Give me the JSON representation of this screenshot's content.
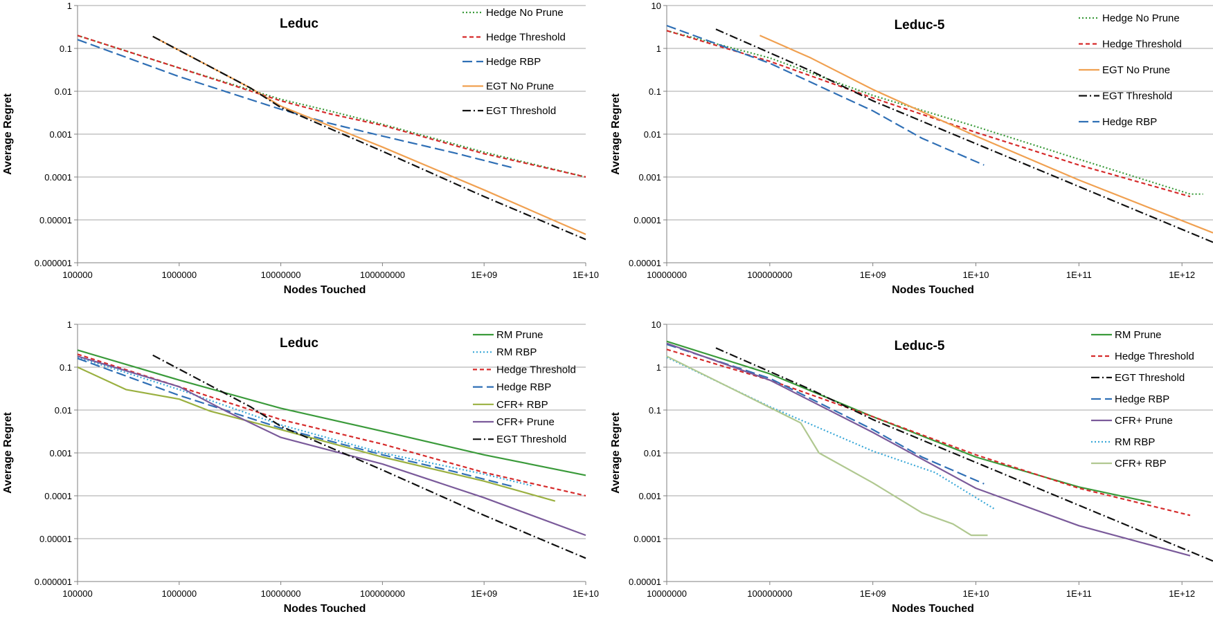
{
  "chart_data": [
    {
      "type": "line",
      "title": "Leduc",
      "xlabel": "Nodes Touched",
      "ylabel": "Average Regret",
      "xscale": "log",
      "yscale": "log",
      "xlim": [
        100000,
        10000000000
      ],
      "ylim": [
        1e-06,
        1
      ],
      "xticks": [
        100000,
        1000000,
        10000000,
        100000000,
        1000000000,
        10000000000
      ],
      "xtick_labels": [
        "100000",
        "1000000",
        "10000000",
        "100000000",
        "1E+09",
        "1E+10"
      ],
      "yticks": [
        1e-06,
        1e-05,
        0.0001,
        0.001,
        0.01,
        0.1,
        1
      ],
      "ytick_labels": [
        "0.000001",
        "0.00001",
        "0.0001",
        "0.001",
        "0.01",
        "0.1",
        "1"
      ],
      "legend_position": "top-right",
      "grid": true,
      "series": [
        {
          "name": "Hedge No Prune",
          "color": "#3a9a3a",
          "dash": "dot",
          "points": [
            [
              100000,
              0.2
            ],
            [
              1000000,
              0.035
            ],
            [
              10000000,
              0.0065
            ],
            [
              30000000,
              0.0035
            ],
            [
              100000000,
              0.0017
            ],
            [
              1000000000,
              0.00038
            ],
            [
              10000000000,
              0.0001
            ]
          ]
        },
        {
          "name": "Hedge Threshold",
          "color": "#d62b2b",
          "dash": "dash",
          "points": [
            [
              100000,
              0.2
            ],
            [
              1000000,
              0.035
            ],
            [
              10000000,
              0.006
            ],
            [
              30000000,
              0.003
            ],
            [
              100000000,
              0.0016
            ],
            [
              1000000000,
              0.00035
            ],
            [
              10000000000,
              0.0001
            ]
          ]
        },
        {
          "name": "Hedge RBP",
          "color": "#2f6fb5",
          "dash": "longdash",
          "points": [
            [
              100000,
              0.16
            ],
            [
              1000000,
              0.022
            ],
            [
              10000000,
              0.0038
            ],
            [
              30000000,
              0.0018
            ],
            [
              100000000,
              0.0009
            ],
            [
              500000000,
              0.00037
            ],
            [
              2000000000,
              0.00016
            ]
          ]
        },
        {
          "name": "EGT No Prune",
          "color": "#f0a050",
          "dash": "solid",
          "points": [
            [
              550000,
              0.19
            ],
            [
              5000000,
              0.012
            ],
            [
              10000000,
              0.0045
            ],
            [
              100000000,
              0.0005
            ],
            [
              1000000000,
              5e-05
            ],
            [
              10000000000,
              4.6e-06
            ]
          ]
        },
        {
          "name": "EGT Threshold",
          "color": "#111111",
          "dash": "dashdot",
          "points": [
            [
              550000,
              0.19
            ],
            [
              5000000,
              0.012
            ],
            [
              10000000,
              0.0042
            ],
            [
              100000000,
              0.0004
            ],
            [
              1000000000,
              3.5e-05
            ],
            [
              10000000000,
              3.5e-06
            ]
          ]
        }
      ]
    },
    {
      "type": "line",
      "title": "Leduc-5",
      "xlabel": "Nodes Touched",
      "ylabel": "Average Regret",
      "xscale": "log",
      "yscale": "log",
      "xlim": [
        10000000,
        2000000000000
      ],
      "ylim": [
        1e-05,
        10
      ],
      "xticks": [
        10000000,
        100000000,
        1000000000,
        10000000000,
        100000000000,
        1000000000000
      ],
      "xtick_labels": [
        "10000000",
        "100000000",
        "1E+09",
        "1E+10",
        "1E+11",
        "1E+12"
      ],
      "yticks": [
        1e-05,
        0.0001,
        0.001,
        0.01,
        0.1,
        1,
        10
      ],
      "ytick_labels": [
        "0.00001",
        "0.0001",
        "0.001",
        "0.01",
        "0.1",
        "1",
        "10"
      ],
      "legend_position": "top-right",
      "grid": true,
      "series": [
        {
          "name": "Hedge No Prune",
          "color": "#3a9a3a",
          "dash": "dot",
          "points": [
            [
              10000000,
              2.6
            ],
            [
              100000000,
              0.6
            ],
            [
              1000000000,
              0.08
            ],
            [
              10000000000,
              0.015
            ],
            [
              100000000000,
              0.0026
            ],
            [
              1200000000000,
              0.0004
            ],
            [
              1600000000000,
              0.0004
            ]
          ]
        },
        {
          "name": "Hedge Threshold",
          "color": "#d62b2b",
          "dash": "dash",
          "points": [
            [
              10000000,
              2.6
            ],
            [
              100000000,
              0.5
            ],
            [
              1000000000,
              0.07
            ],
            [
              10000000000,
              0.011
            ],
            [
              100000000000,
              0.0019
            ],
            [
              1200000000000,
              0.00035
            ]
          ]
        },
        {
          "name": "EGT No Prune",
          "color": "#f0a050",
          "dash": "solid",
          "points": [
            [
              80000000,
              2.0
            ],
            [
              250000000,
              0.6
            ],
            [
              1000000000,
              0.11
            ],
            [
              10000000000,
              0.009
            ],
            [
              100000000000,
              0.00085
            ],
            [
              2000000000000,
              5e-05
            ]
          ]
        },
        {
          "name": "EGT Threshold",
          "color": "#111111",
          "dash": "dashdot",
          "points": [
            [
              30000000,
              2.8
            ],
            [
              250000000,
              0.3
            ],
            [
              1000000000,
              0.06
            ],
            [
              10000000000,
              0.006
            ],
            [
              100000000000,
              0.0006
            ],
            [
              2000000000000,
              3e-05
            ]
          ]
        },
        {
          "name": "Hedge RBP",
          "color": "#2f6fb5",
          "dash": "longdash",
          "points": [
            [
              10000000,
              3.4
            ],
            [
              100000000,
              0.45
            ],
            [
              1000000000,
              0.035
            ],
            [
              3000000000,
              0.008
            ],
            [
              12000000000,
              0.0019
            ]
          ]
        }
      ]
    },
    {
      "type": "line",
      "title": "Leduc",
      "xlabel": "Nodes Touched",
      "ylabel": "Average Regret",
      "xscale": "log",
      "yscale": "log",
      "xlim": [
        100000,
        10000000000
      ],
      "ylim": [
        1e-06,
        1
      ],
      "xticks": [
        100000,
        1000000,
        10000000,
        100000000,
        1000000000,
        10000000000
      ],
      "xtick_labels": [
        "100000",
        "1000000",
        "10000000",
        "100000000",
        "1E+09",
        "1E+10"
      ],
      "yticks": [
        1e-06,
        1e-05,
        0.0001,
        0.001,
        0.01,
        0.1,
        1
      ],
      "ytick_labels": [
        "0.000001",
        "0.00001",
        "0.0001",
        "0.001",
        "0.01",
        "0.1",
        "1"
      ],
      "legend_position": "top-right",
      "grid": true,
      "series": [
        {
          "name": "RM Prune",
          "color": "#3a9a3a",
          "dash": "solid",
          "points": [
            [
              100000,
              0.25
            ],
            [
              1000000,
              0.05
            ],
            [
              10000000,
              0.011
            ],
            [
              100000000,
              0.0032
            ],
            [
              1000000000,
              0.0009
            ],
            [
              10000000000,
              0.0003
            ]
          ]
        },
        {
          "name": "RM RBP",
          "color": "#3aa8d8",
          "dash": "dot",
          "points": [
            [
              100000,
              0.17
            ],
            [
              1000000,
              0.03
            ],
            [
              10000000,
              0.0045
            ],
            [
              100000000,
              0.001
            ],
            [
              1000000000,
              0.00032
            ],
            [
              3000000000,
              0.00017
            ]
          ]
        },
        {
          "name": "Hedge Threshold",
          "color": "#d62b2b",
          "dash": "dash",
          "points": [
            [
              100000,
              0.2
            ],
            [
              1000000,
              0.035
            ],
            [
              10000000,
              0.006
            ],
            [
              100000000,
              0.0016
            ],
            [
              1000000000,
              0.00035
            ],
            [
              10000000000,
              0.0001
            ]
          ]
        },
        {
          "name": "Hedge RBP",
          "color": "#2f6fb5",
          "dash": "longdash",
          "points": [
            [
              100000,
              0.16
            ],
            [
              1000000,
              0.022
            ],
            [
              10000000,
              0.0038
            ],
            [
              100000000,
              0.0009
            ],
            [
              500000000,
              0.00037
            ],
            [
              2000000000,
              0.00016
            ]
          ]
        },
        {
          "name": "CFR+ RBP",
          "color": "#9ab040",
          "dash": "solid",
          "points": [
            [
              100000,
              0.1
            ],
            [
              300000,
              0.03
            ],
            [
              1000000,
              0.018
            ],
            [
              2000000,
              0.0095
            ],
            [
              10000000,
              0.0035
            ],
            [
              100000000,
              0.0008
            ],
            [
              1000000000,
              0.00022
            ],
            [
              5000000000,
              7.5e-05
            ]
          ]
        },
        {
          "name": "CFR+ Prune",
          "color": "#7a5a9a",
          "dash": "solid",
          "points": [
            [
              100000,
              0.18
            ],
            [
              1000000,
              0.035
            ],
            [
              3000000,
              0.009
            ],
            [
              10000000,
              0.0023
            ],
            [
              100000000,
              0.00055
            ],
            [
              1000000000,
              9e-05
            ],
            [
              10000000000,
              1.2e-05
            ]
          ]
        },
        {
          "name": "EGT Threshold",
          "color": "#111111",
          "dash": "dashdot",
          "points": [
            [
              550000,
              0.19
            ],
            [
              5000000,
              0.012
            ],
            [
              10000000,
              0.0042
            ],
            [
              100000000,
              0.0004
            ],
            [
              1000000000,
              3.5e-05
            ],
            [
              10000000000,
              3.5e-06
            ]
          ]
        }
      ]
    },
    {
      "type": "line",
      "title": "Leduc-5",
      "xlabel": "Nodes Touched",
      "ylabel": "Average Regret",
      "xscale": "log",
      "yscale": "log",
      "xlim": [
        10000000,
        2000000000000
      ],
      "ylim": [
        1e-05,
        10
      ],
      "xticks": [
        10000000,
        100000000,
        1000000000,
        10000000000,
        100000000000,
        1000000000000
      ],
      "xtick_labels": [
        "10000000",
        "100000000",
        "1E+09",
        "1E+10",
        "1E+11",
        "1E+12"
      ],
      "yticks": [
        1e-05,
        0.0001,
        0.001,
        0.01,
        0.1,
        1,
        10
      ],
      "ytick_labels": [
        "0.00001",
        "0.0001",
        "0.001",
        "0.01",
        "0.1",
        "1",
        "10"
      ],
      "legend_position": "top-right",
      "grid": true,
      "series": [
        {
          "name": "RM Prune",
          "color": "#3a9a3a",
          "dash": "solid",
          "points": [
            [
              10000000,
              4
            ],
            [
              100000000,
              0.7
            ],
            [
              1000000000,
              0.07
            ],
            [
              10000000000,
              0.008
            ],
            [
              100000000000,
              0.0016
            ],
            [
              500000000000,
              0.0007
            ]
          ]
        },
        {
          "name": "Hedge Threshold",
          "color": "#d62b2b",
          "dash": "dash",
          "points": [
            [
              10000000,
              2.6
            ],
            [
              100000000,
              0.5
            ],
            [
              1000000000,
              0.07
            ],
            [
              10000000000,
              0.009
            ],
            [
              100000000000,
              0.0015
            ],
            [
              1200000000000,
              0.00035
            ]
          ]
        },
        {
          "name": "EGT Threshold",
          "color": "#111111",
          "dash": "dashdot",
          "points": [
            [
              30000000,
              2.8
            ],
            [
              250000000,
              0.3
            ],
            [
              1000000000,
              0.06
            ],
            [
              10000000000,
              0.006
            ],
            [
              100000000000,
              0.0006
            ],
            [
              2000000000000,
              3e-05
            ]
          ]
        },
        {
          "name": "Hedge RBP",
          "color": "#2f6fb5",
          "dash": "longdash",
          "points": [
            [
              10000000,
              3.4
            ],
            [
              100000000,
              0.55
            ],
            [
              1000000000,
              0.035
            ],
            [
              3000000000,
              0.008
            ],
            [
              12000000000,
              0.0019
            ]
          ]
        },
        {
          "name": "CFR+ Prune",
          "color": "#7a5a9a",
          "dash": "solid",
          "points": [
            [
              10000000,
              3.6
            ],
            [
              100000000,
              0.5
            ],
            [
              1000000000,
              0.03
            ],
            [
              10000000000,
              0.0015
            ],
            [
              100000000000,
              0.0002
            ],
            [
              1200000000000,
              4e-05
            ]
          ]
        },
        {
          "name": "RM RBP",
          "color": "#3aa8d8",
          "dash": "dot",
          "points": [
            [
              10000000,
              1.7
            ],
            [
              100000000,
              0.12
            ],
            [
              1000000000,
              0.011
            ],
            [
              4000000000,
              0.0035
            ],
            [
              15000000000,
              0.0005
            ]
          ]
        },
        {
          "name": "CFR+ RBP",
          "color": "#b0c890",
          "dash": "solid",
          "points": [
            [
              10000000,
              1.8
            ],
            [
              80000000,
              0.15
            ],
            [
              200000000,
              0.05
            ],
            [
              300000000,
              0.01
            ],
            [
              1000000000,
              0.002
            ],
            [
              3000000000,
              0.0004
            ],
            [
              6000000000,
              0.00022
            ],
            [
              9000000000,
              0.00012
            ],
            [
              13000000000,
              0.00012
            ]
          ]
        }
      ]
    }
  ]
}
